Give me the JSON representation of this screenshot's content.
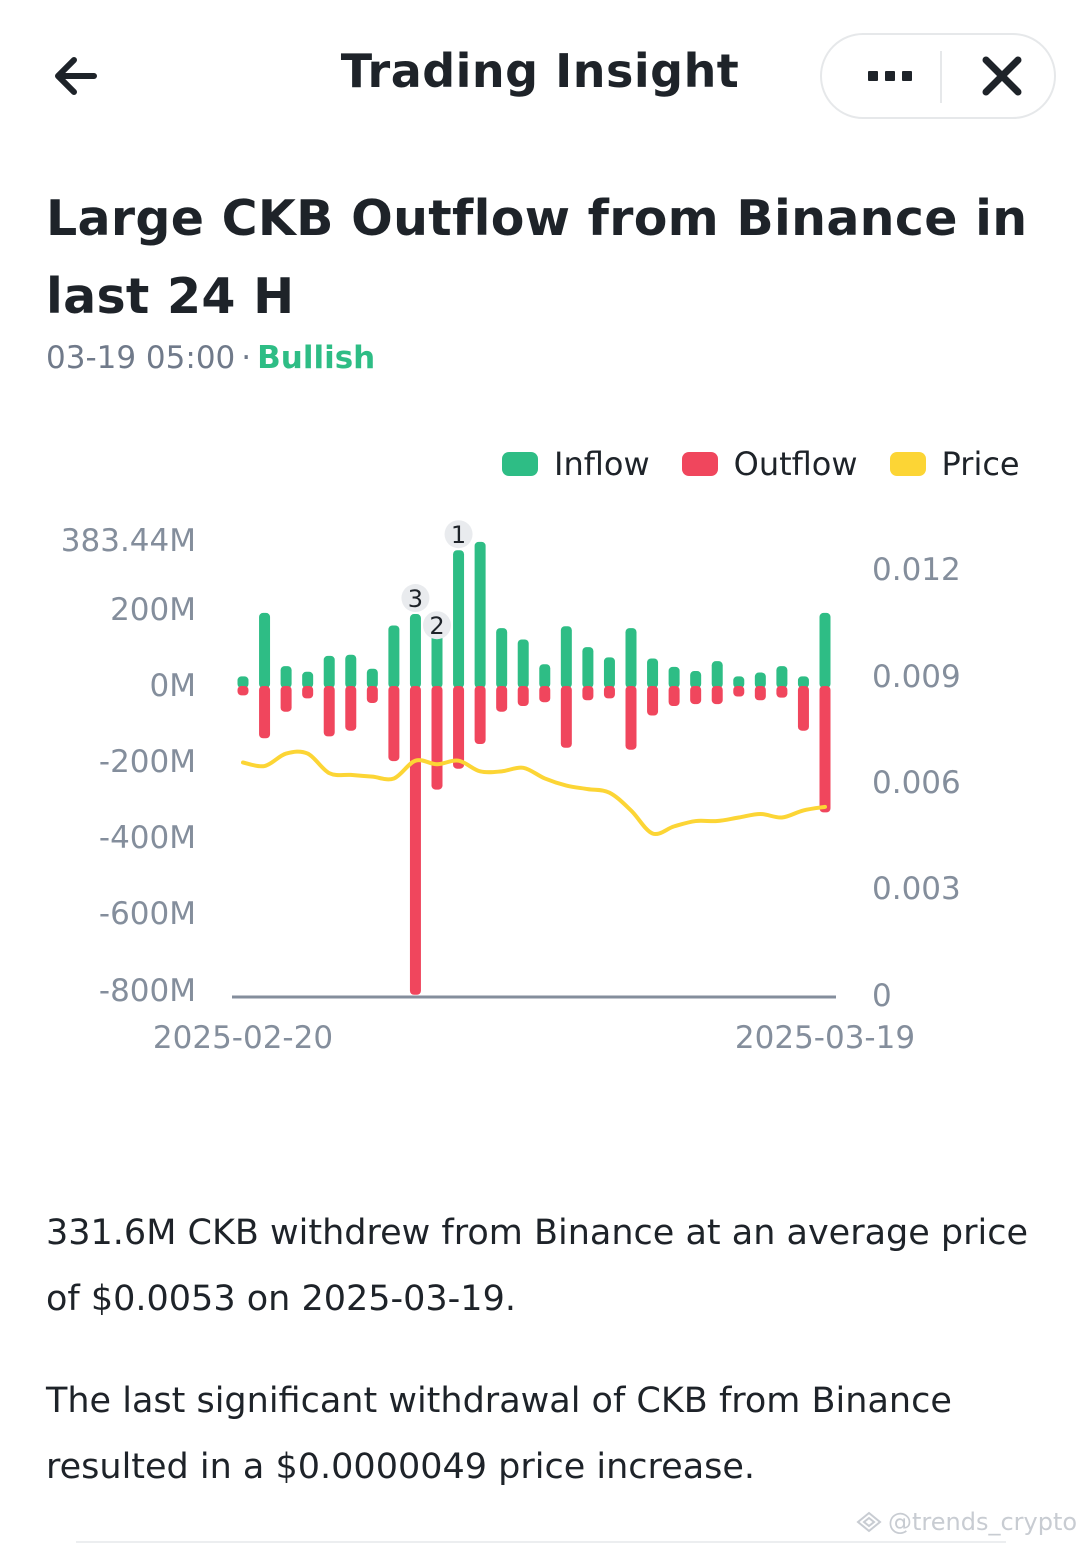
{
  "header": {
    "title": "Trading Insight",
    "back_icon": "arrow-left-icon",
    "more_icon": "more-dots-icon",
    "close_icon": "close-icon"
  },
  "insight": {
    "headline": "Large CKB Outflow from Binance in last 24 H",
    "time": "03-19 05:00",
    "separator": "·",
    "sentiment": "Bullish",
    "sentiment_color": "#2ebd85"
  },
  "chart_data": {
    "type": "bar",
    "legend": [
      {
        "name": "Inflow",
        "color": "#2ebd85"
      },
      {
        "name": "Outflow",
        "color": "#f0465d"
      },
      {
        "name": "Price",
        "color": "#fcd535"
      }
    ],
    "legend_position": "top-right",
    "x_labels": [
      "2025-02-20",
      "2025-03-19"
    ],
    "y_left": {
      "ticks": [
        "383.44M",
        "200M",
        "0M",
        "-200M",
        "-400M",
        "-600M",
        "-800M"
      ],
      "values": [
        383.44,
        200,
        0,
        -200,
        -400,
        -600,
        -800
      ],
      "unit": "M"
    },
    "y_right": {
      "ticks": [
        "0.012",
        "0.009",
        "0.006",
        "0.003",
        "0"
      ],
      "values": [
        0.012,
        0.009,
        0.006,
        0.003,
        0
      ]
    },
    "grid": false,
    "days": 28,
    "inflow": [
      28,
      195,
      55,
      40,
      82,
      85,
      48,
      162,
      192,
      152,
      360,
      382,
      155,
      125,
      60,
      160,
      105,
      78,
      155,
      75,
      53,
      42,
      68,
      28,
      38,
      55,
      28,
      195
    ],
    "outflow": [
      -22,
      -135,
      -65,
      -30,
      -130,
      -115,
      -42,
      -195,
      -810,
      -270,
      -215,
      -150,
      -65,
      -50,
      -40,
      -160,
      -35,
      -30,
      -165,
      -75,
      -50,
      -45,
      -45,
      -25,
      -35,
      -28,
      -115,
      -330
    ],
    "price": [
      0.00655,
      0.00645,
      0.0068,
      0.0068,
      0.00625,
      0.0062,
      0.00615,
      0.0061,
      0.0066,
      0.0065,
      0.0066,
      0.0063,
      0.0063,
      0.0064,
      0.0061,
      0.0059,
      0.0058,
      0.0057,
      0.0052,
      0.00455,
      0.00475,
      0.0049,
      0.0049,
      0.005,
      0.0051,
      0.005,
      0.0052,
      0.0053
    ],
    "markers": [
      {
        "label": "1",
        "day": 10,
        "series": "inflow"
      },
      {
        "label": "2",
        "day": 9,
        "series": "inflow"
      },
      {
        "label": "3",
        "day": 8,
        "series": "inflow"
      }
    ]
  },
  "description": {
    "p1": "331.6M CKB withdrew from Binance at an average price of $0.0053 on 2025-03-19.",
    "p2": "The last significant withdrawal of CKB from Binance resulted in a $0.0000049 price increase."
  },
  "watermark": {
    "text": "@trends_crypto",
    "icon": "binance-square-icon"
  }
}
